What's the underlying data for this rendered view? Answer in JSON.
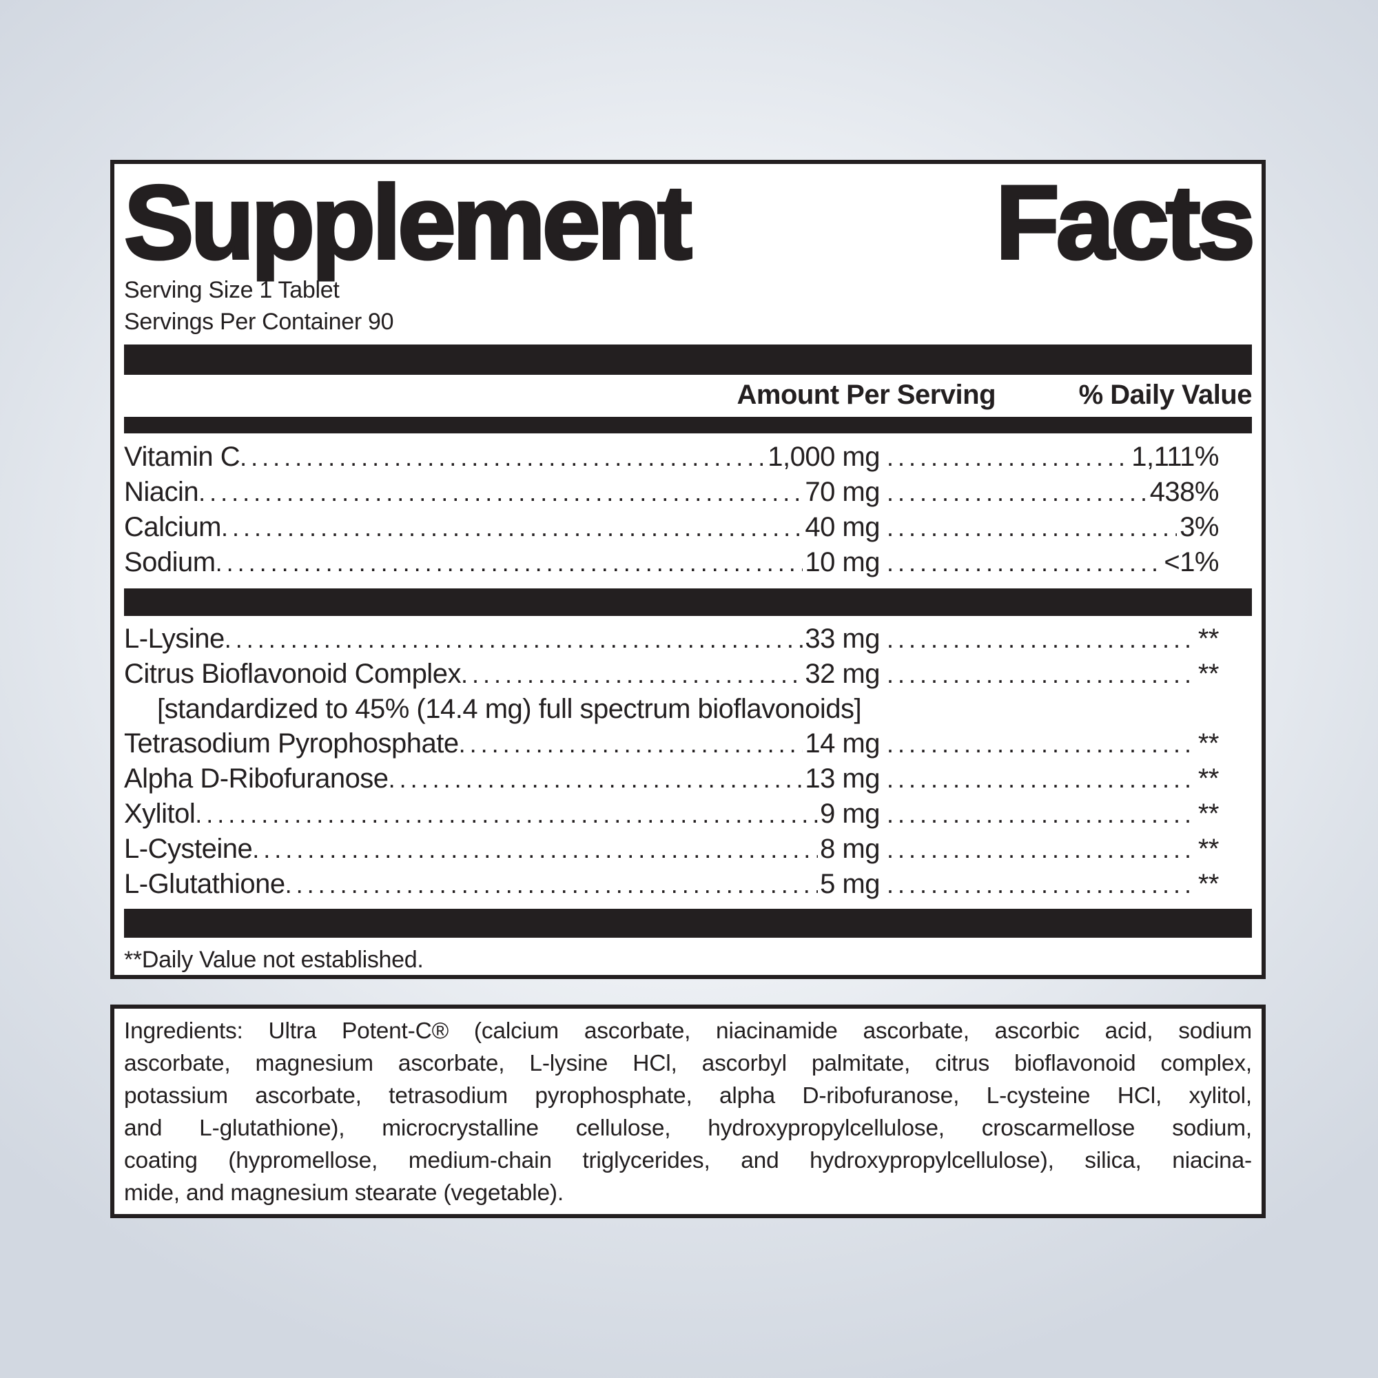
{
  "colors": {
    "ink": "#231f20",
    "panel_bg": "#ffffff",
    "page_bg_center": "#fbfcfd",
    "page_bg_edge": "#d2d8e1"
  },
  "label": {
    "title": "Supplement Facts",
    "serving_size": "Serving Size 1 Tablet",
    "servings_per_container": "Servings Per Container 90",
    "columns": {
      "amount_header": "Amount Per Serving",
      "dv_header": "% Daily Value"
    },
    "nutrients": [
      {
        "name": "Vitamin C",
        "amount": "1,000 mg",
        "dv": "1,111%"
      },
      {
        "name": "Niacin",
        "amount": "70 mg",
        "dv": "438%"
      },
      {
        "name": "Calcium",
        "amount": "40 mg",
        "dv": "3%"
      },
      {
        "name": "Sodium",
        "amount": "10 mg",
        "dv": "<1%"
      }
    ],
    "other_rows": [
      {
        "name": "L-Lysine",
        "amount": "33 mg",
        "dv": "**"
      },
      {
        "name": "Citrus Bioflavonoid Complex",
        "amount": "32 mg",
        "dv": "**",
        "note": "[standardized to 45% (14.4 mg) full spectrum bioflavonoids]"
      },
      {
        "name": "Tetrasodium Pyrophosphate",
        "amount": "14 mg",
        "dv": "**"
      },
      {
        "name": "Alpha D-Ribofuranose",
        "amount": "13 mg",
        "dv": "**"
      },
      {
        "name": "Xylitol",
        "amount": "9 mg",
        "dv": "**"
      },
      {
        "name": "L-Cysteine",
        "amount": "8 mg",
        "dv": "**"
      },
      {
        "name": "L-Glutathione",
        "amount": "5 mg",
        "dv": "**"
      }
    ],
    "footnote": "**Daily Value not established."
  },
  "ingredients": {
    "lines": [
      "Ingredients: Ultra Potent-C® (calcium ascorbate, niacinamide ascorbate, ascorbic acid, sodium",
      "ascorbate, magnesium ascorbate, L-lysine HCl, ascorbyl palmitate, citrus bioflavonoid complex,",
      "potassium ascorbate, tetrasodium pyrophosphate, alpha D-ribofuranose, L-cysteine HCl, xylitol,",
      "and L-glutathione), microcrystalline cellulose, hydroxypropylcellulose, croscarmellose sodium,",
      "coating (hypromellose, medium-chain triglycerides, and hydroxypropylcellulose), silica, niacina-",
      "mide, and magnesium stearate (vegetable)."
    ]
  }
}
